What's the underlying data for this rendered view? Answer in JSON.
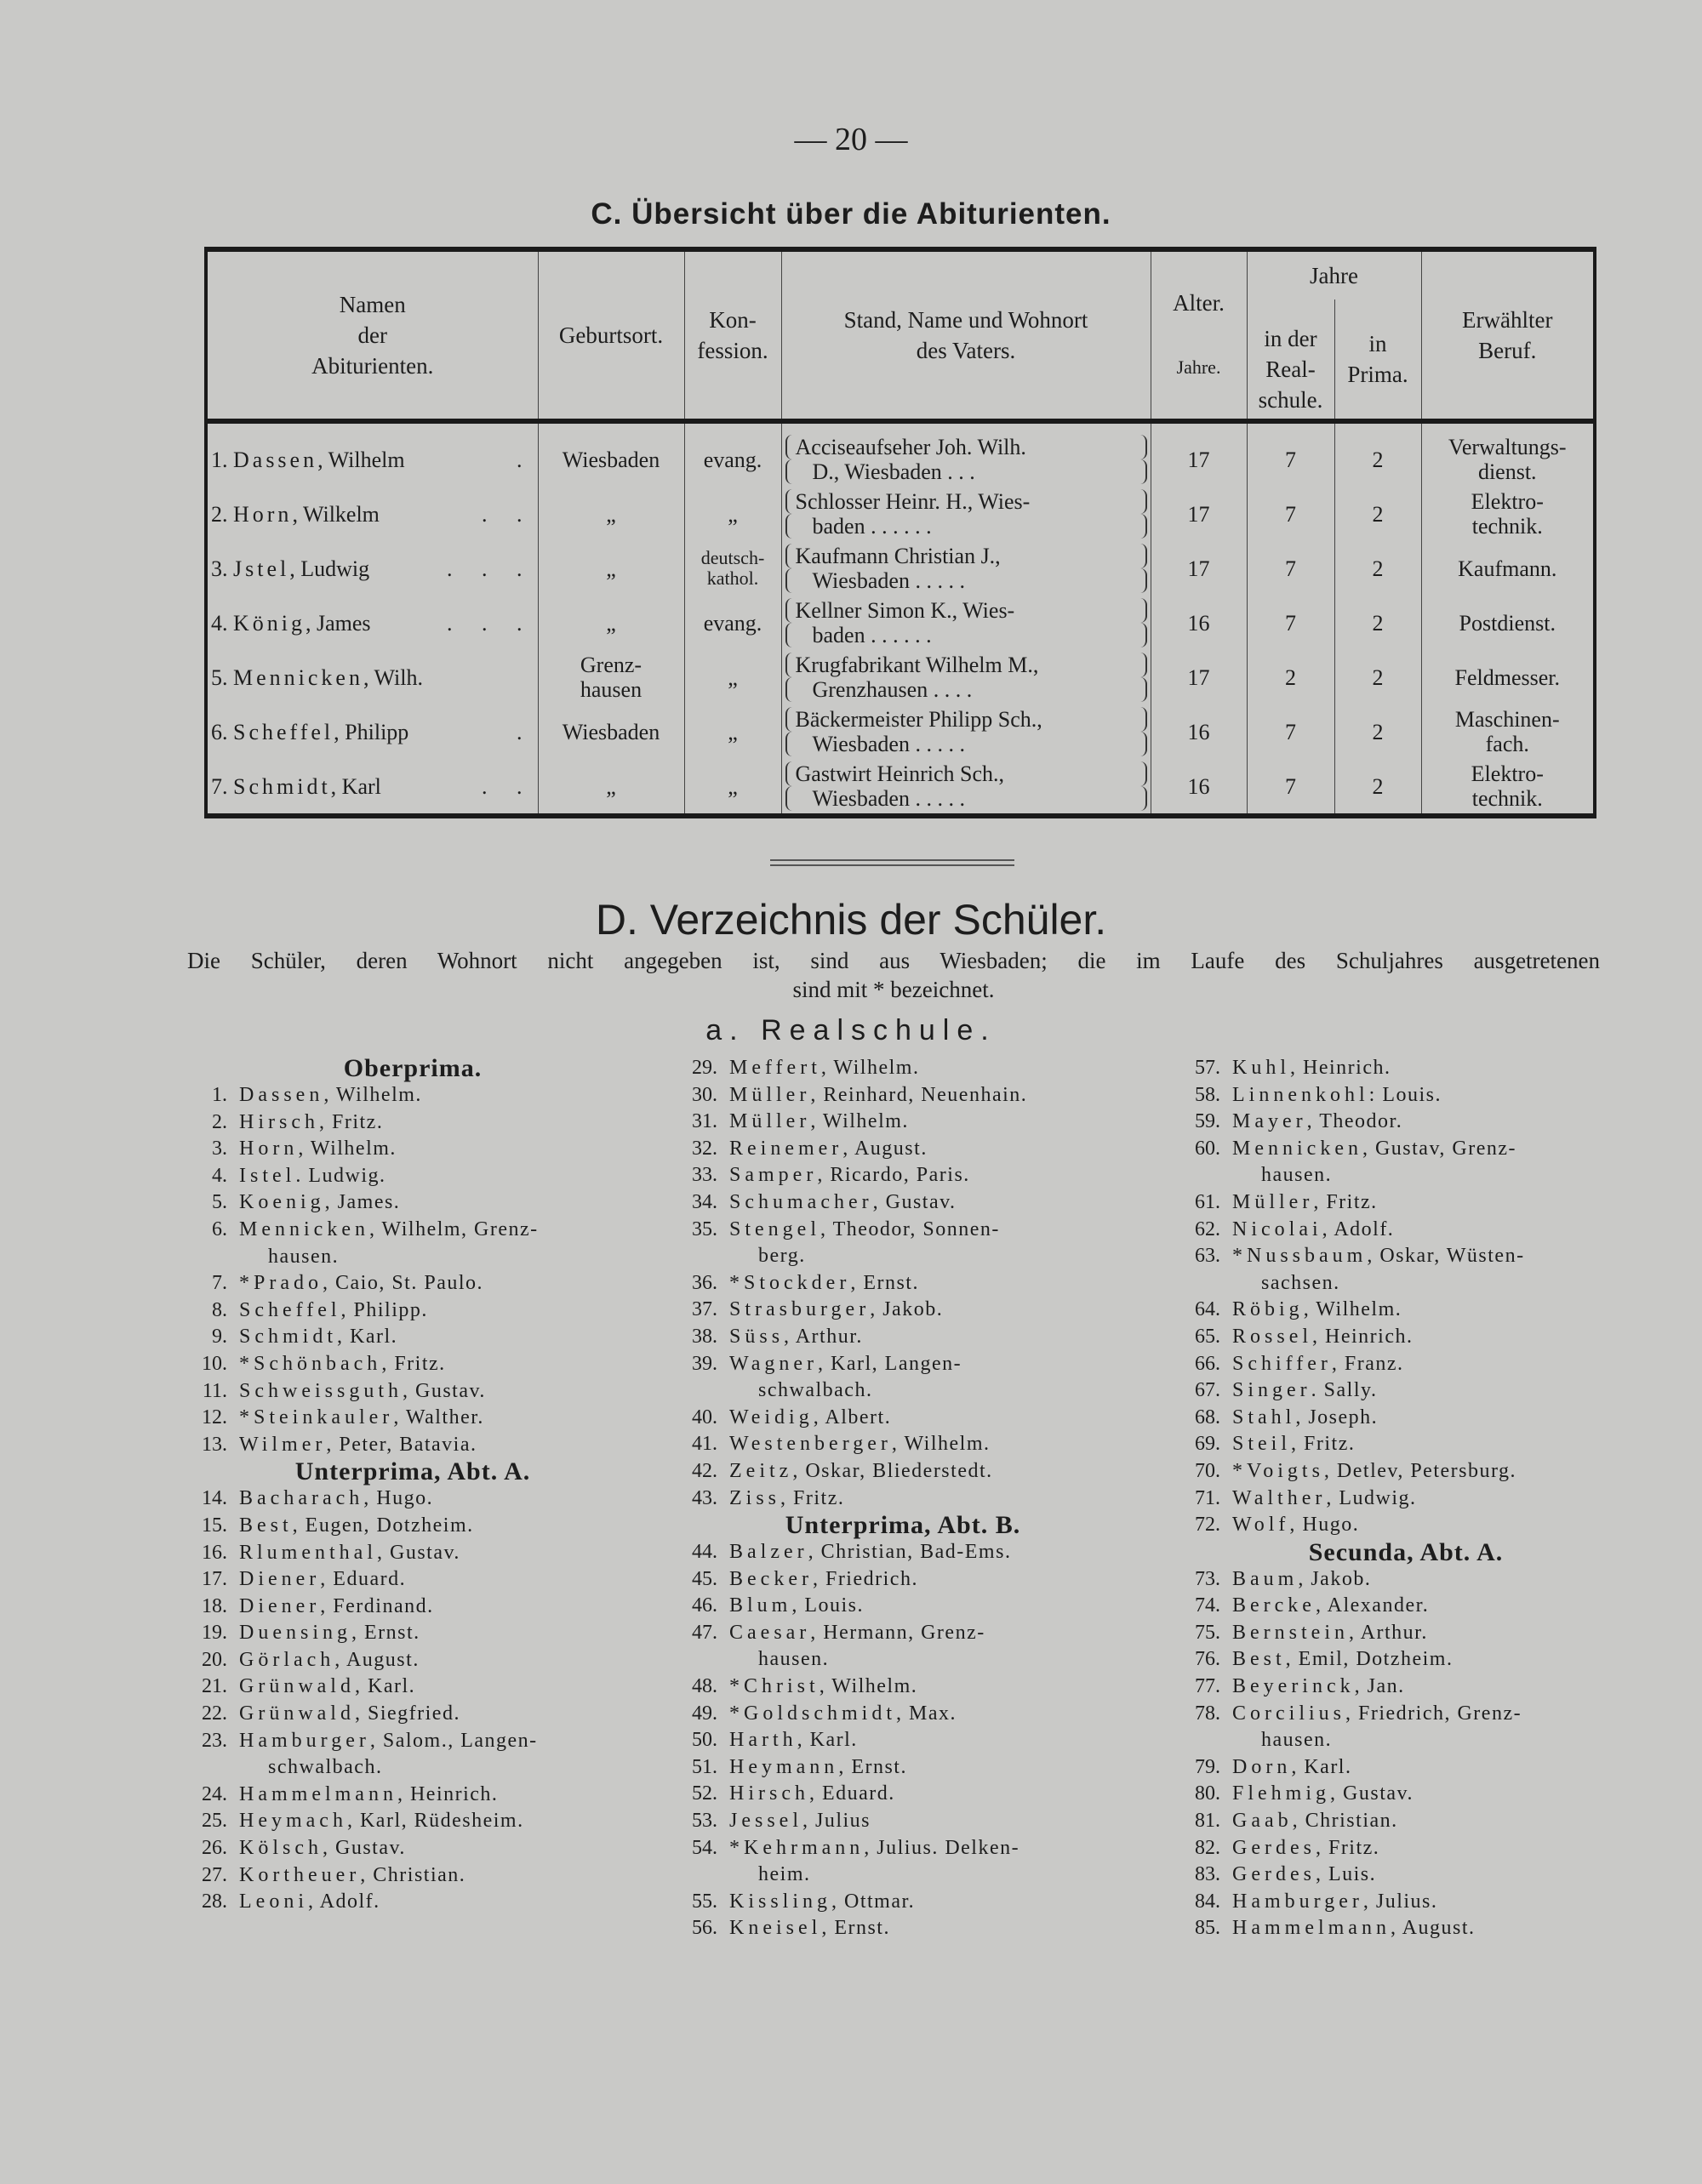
{
  "page_number": "— 20 —",
  "section_c": {
    "title": "C. Übersicht über die Abiturienten.",
    "headers": {
      "names": [
        "Namen",
        "der",
        "Abiturienten."
      ],
      "birthplace": "Geburtsort.",
      "confession": [
        "Kon-",
        "fession."
      ],
      "father": [
        "Stand, Name und Wohnort",
        "des Vaters."
      ],
      "age": [
        "Alter.",
        "Jahre."
      ],
      "years": "Jahre",
      "realschule": [
        "in der",
        "Real-",
        "schule."
      ],
      "prima": [
        "in",
        "Prima."
      ],
      "profession": [
        "Erwählter",
        "Beruf."
      ]
    },
    "rows": [
      {
        "n": "1.",
        "name": "Dassen",
        "rest": ", Wilhelm",
        "dots": ".",
        "birthplace": "Wiesbaden",
        "confession": "evang.",
        "father": [
          "Acciseaufseher Joh. Wilh.",
          "D., Wiesbaden . . ."
        ],
        "age": "17",
        "realschule": "7",
        "prima": "2",
        "profession": [
          "Verwaltungs-",
          "dienst."
        ]
      },
      {
        "n": "2.",
        "name": "Horn",
        "rest": ", Wilkelm",
        "dots": ". .",
        "birthplace": "„",
        "confession": "„",
        "father": [
          "Schlosser Heinr. H., Wies-",
          "baden . . . . . ."
        ],
        "age": "17",
        "realschule": "7",
        "prima": "2",
        "profession": [
          "Elektro-",
          "technik."
        ]
      },
      {
        "n": "3.",
        "name": "Jstel",
        "rest": ", Ludwig",
        "dots": ". . .",
        "birthplace": "„",
        "confession": "deutsch-\nkathol.",
        "father": [
          "Kaufmann Christian J.,",
          "Wiesbaden . . . . ."
        ],
        "age": "17",
        "realschule": "7",
        "prima": "2",
        "profession": [
          "Kaufmann."
        ]
      },
      {
        "n": "4.",
        "name": "König",
        "rest": ", James",
        "dots": ". . .",
        "birthplace": "„",
        "confession": "evang.",
        "father": [
          "Kellner Simon K., Wies-",
          "baden . . . . . ."
        ],
        "age": "16",
        "realschule": "7",
        "prima": "2",
        "profession": [
          "Postdienst."
        ]
      },
      {
        "n": "5.",
        "name": "Mennicken",
        "rest": ", Wilh.",
        "dots": "",
        "birthplace": "Grenz-\nhausen",
        "confession": "„",
        "father": [
          "Krugfabrikant Wilhelm M.,",
          "Grenzhausen . . . ."
        ],
        "age": "17",
        "realschule": "2",
        "prima": "2",
        "profession": [
          "Feldmesser."
        ]
      },
      {
        "n": "6.",
        "name": "Scheffel",
        "rest": ", Philipp",
        "dots": ".",
        "birthplace": "Wiesbaden",
        "confession": "„",
        "father": [
          "Bäckermeister Philipp Sch.,",
          "Wiesbaden . . . . ."
        ],
        "age": "16",
        "realschule": "7",
        "prima": "2",
        "profession": [
          "Maschinen-",
          "fach."
        ]
      },
      {
        "n": "7.",
        "name": "Schmidt",
        "rest": ", Karl",
        "dots": ". .",
        "birthplace": "„",
        "confession": "„",
        "father": [
          "Gastwirt Heinrich Sch.,",
          "Wiesbaden . . . . ."
        ],
        "age": "16",
        "realschule": "7",
        "prima": "2",
        "profession": [
          "Elektro-",
          "technik."
        ]
      }
    ]
  },
  "section_d": {
    "title": "D. Verzeichnis der Schüler.",
    "intro": [
      "Die Schüler, deren Wohnort nicht angegeben ist, sind aus Wiesbaden; die im Laufe des Schuljahres ausgetretenen",
      "sind mit * bezeichnet."
    ],
    "subtitle": "a. Realschule.",
    "columns": [
      [
        {
          "heading": "Oberprima."
        },
        {
          "n": "1.",
          "name": "Dassen",
          "rest": ", Wilhelm."
        },
        {
          "n": "2.",
          "name": "Hirsch",
          "rest": ", Fritz."
        },
        {
          "n": "3.",
          "name": "Horn",
          "rest": ", Wilhelm."
        },
        {
          "n": "4.",
          "name": "Istel",
          "rest": ". Ludwig."
        },
        {
          "n": "5.",
          "name": "Koenig",
          "rest": ", James."
        },
        {
          "n": "6.",
          "name": "Mennicken",
          "rest": ", Wilhelm, Grenz-",
          "cont": "hausen."
        },
        {
          "n": "7.",
          "name": "*Prado",
          "rest": ", Caio, St. Paulo."
        },
        {
          "n": "8.",
          "name": "Scheffel",
          "rest": ", Philipp."
        },
        {
          "n": "9.",
          "name": "Schmidt",
          "rest": ", Karl."
        },
        {
          "n": "10.",
          "name": "*Schönbach",
          "rest": ", Fritz."
        },
        {
          "n": "11.",
          "name": "Schweissguth",
          "rest": ", Gustav."
        },
        {
          "n": "12.",
          "name": "*Steinkauler",
          "rest": ", Walther."
        },
        {
          "n": "13.",
          "name": "Wilmer",
          "rest": ", Peter, Batavia."
        },
        {
          "heading": "Unterprima, Abt. A."
        },
        {
          "n": "14.",
          "name": "Bacharach",
          "rest": ", Hugo."
        },
        {
          "n": "15.",
          "name": "Best",
          "rest": ", Eugen, Dotzheim."
        },
        {
          "n": "16.",
          "name": "Rlumenthal",
          "rest": ", Gustav."
        },
        {
          "n": "17.",
          "name": "Diener",
          "rest": ", Eduard."
        },
        {
          "n": "18.",
          "name": "Diener",
          "rest": ", Ferdinand."
        },
        {
          "n": "19.",
          "name": "Duensing",
          "rest": ", Ernst."
        },
        {
          "n": "20.",
          "name": "Görlach",
          "rest": ", August."
        },
        {
          "n": "21.",
          "name": "Grünwald",
          "rest": ", Karl."
        },
        {
          "n": "22.",
          "name": "Grünwald",
          "rest": ", Siegfried."
        },
        {
          "n": "23.",
          "name": "Hamburger",
          "rest": ", Salom., Langen-",
          "cont": "schwalbach."
        },
        {
          "n": "24.",
          "name": "Hammelmann",
          "rest": ", Heinrich."
        },
        {
          "n": "25.",
          "name": "Heymach",
          "rest": ", Karl, Rüdesheim."
        },
        {
          "n": "26.",
          "name": "Kölsch",
          "rest": ", Gustav."
        },
        {
          "n": "27.",
          "name": "Kortheuer",
          "rest": ", Christian."
        },
        {
          "n": "28.",
          "name": "Leoni",
          "rest": ", Adolf."
        }
      ],
      [
        {
          "n": "29.",
          "name": "Meffert",
          "rest": ", Wilhelm."
        },
        {
          "n": "30.",
          "name": "Müller",
          "rest": ", Reinhard, Neuenhain."
        },
        {
          "n": "31.",
          "name": "Müller",
          "rest": ", Wilhelm."
        },
        {
          "n": "32.",
          "name": "Reinemer",
          "rest": ", August."
        },
        {
          "n": "33.",
          "name": "Samper",
          "rest": ", Ricardo, Paris."
        },
        {
          "n": "34.",
          "name": "Schumacher",
          "rest": ", Gustav."
        },
        {
          "n": "35.",
          "name": "Stengel",
          "rest": ", Theodor, Sonnen-",
          "cont": "berg."
        },
        {
          "n": "36.",
          "name": "*Stockder",
          "rest": ", Ernst."
        },
        {
          "n": "37.",
          "name": "Strasburger",
          "rest": ", Jakob."
        },
        {
          "n": "38.",
          "name": "Süss",
          "rest": ", Arthur."
        },
        {
          "n": "39.",
          "name": "Wagner",
          "rest": ", Karl, Langen-",
          "cont": "schwalbach."
        },
        {
          "n": "40.",
          "name": "Weidig",
          "rest": ", Albert."
        },
        {
          "n": "41.",
          "name": "Westenberger",
          "rest": ", Wilhelm."
        },
        {
          "n": "42.",
          "name": "Zeitz",
          "rest": ", Oskar, Bliederstedt."
        },
        {
          "n": "43.",
          "name": "Ziss",
          "rest": ", Fritz."
        },
        {
          "heading": "Unterprima, Abt. B."
        },
        {
          "n": "44.",
          "name": "Balzer",
          "rest": ", Christian, Bad-Ems."
        },
        {
          "n": "45.",
          "name": "Becker",
          "rest": ", Friedrich."
        },
        {
          "n": "46.",
          "name": "Blum",
          "rest": ", Louis."
        },
        {
          "n": "47.",
          "name": "Caesar",
          "rest": ", Hermann, Grenz-",
          "cont": "hausen."
        },
        {
          "n": "48.",
          "name": "*Christ",
          "rest": ", Wilhelm."
        },
        {
          "n": "49.",
          "name": "*Goldschmidt",
          "rest": ", Max."
        },
        {
          "n": "50.",
          "name": "Harth",
          "rest": ", Karl."
        },
        {
          "n": "51.",
          "name": "Heymann",
          "rest": ", Ernst."
        },
        {
          "n": "52.",
          "name": "Hirsch",
          "rest": ", Eduard."
        },
        {
          "n": "53.",
          "name": "Jessel",
          "rest": ", Julius"
        },
        {
          "n": "54.",
          "name": "*Kehrmann",
          "rest": ", Julius. Delken-",
          "cont": "heim."
        },
        {
          "n": "55.",
          "name": "Kissling",
          "rest": ", Ottmar."
        },
        {
          "n": "56.",
          "name": "Kneisel",
          "rest": ", Ernst."
        }
      ],
      [
        {
          "n": "57.",
          "name": "Kuhl",
          "rest": ", Heinrich."
        },
        {
          "n": "58.",
          "name": "Linnenkohl",
          "rest": ": Louis."
        },
        {
          "n": "59.",
          "name": "Mayer",
          "rest": ", Theodor."
        },
        {
          "n": "60.",
          "name": "Mennicken",
          "rest": ", Gustav, Grenz-",
          "cont": "hausen."
        },
        {
          "n": "61.",
          "name": "Müller",
          "rest": ", Fritz."
        },
        {
          "n": "62.",
          "name": "Nicolai",
          "rest": ", Adolf."
        },
        {
          "n": "63.",
          "name": "*Nussbaum",
          "rest": ", Oskar, Wüsten-",
          "cont": "sachsen."
        },
        {
          "n": "64.",
          "name": "Röbig",
          "rest": ", Wilhelm."
        },
        {
          "n": "65.",
          "name": "Rossel",
          "rest": ", Heinrich."
        },
        {
          "n": "66.",
          "name": "Schiffer",
          "rest": ", Franz."
        },
        {
          "n": "67.",
          "name": "Singer",
          "rest": ". Sally."
        },
        {
          "n": "68.",
          "name": "Stahl",
          "rest": ", Joseph."
        },
        {
          "n": "69.",
          "name": "Steil",
          "rest": ", Fritz."
        },
        {
          "n": "70.",
          "name": "*Voigts",
          "rest": ", Detlev, Petersburg."
        },
        {
          "n": "71.",
          "name": "Walther",
          "rest": ", Ludwig."
        },
        {
          "n": "72.",
          "name": "Wolf",
          "rest": ", Hugo."
        },
        {
          "heading": "Secunda, Abt. A."
        },
        {
          "n": "73.",
          "name": "Baum",
          "rest": ", Jakob."
        },
        {
          "n": "74.",
          "name": "Bercke",
          "rest": ", Alexander."
        },
        {
          "n": "75.",
          "name": "Bernstein",
          "rest": ", Arthur."
        },
        {
          "n": "76.",
          "name": "Best",
          "rest": ", Emil, Dotzheim."
        },
        {
          "n": "77.",
          "name": "Beyerinck",
          "rest": ", Jan."
        },
        {
          "n": "78.",
          "name": "Corcilius",
          "rest": ", Friedrich, Grenz-",
          "cont": "hausen."
        },
        {
          "n": "79.",
          "name": "Dorn",
          "rest": ", Karl."
        },
        {
          "n": "80.",
          "name": "Flehmig",
          "rest": ", Gustav."
        },
        {
          "n": "81.",
          "name": "Gaab",
          "rest": ", Christian."
        },
        {
          "n": "82.",
          "name": "Gerdes",
          "rest": ", Fritz."
        },
        {
          "n": "83.",
          "name": "Gerdes",
          "rest": ", Luis."
        },
        {
          "n": "84.",
          "name": "Hamburger",
          "rest": ", Julius."
        },
        {
          "n": "85.",
          "name": "Hammelmann",
          "rest": ", August."
        }
      ]
    ]
  }
}
